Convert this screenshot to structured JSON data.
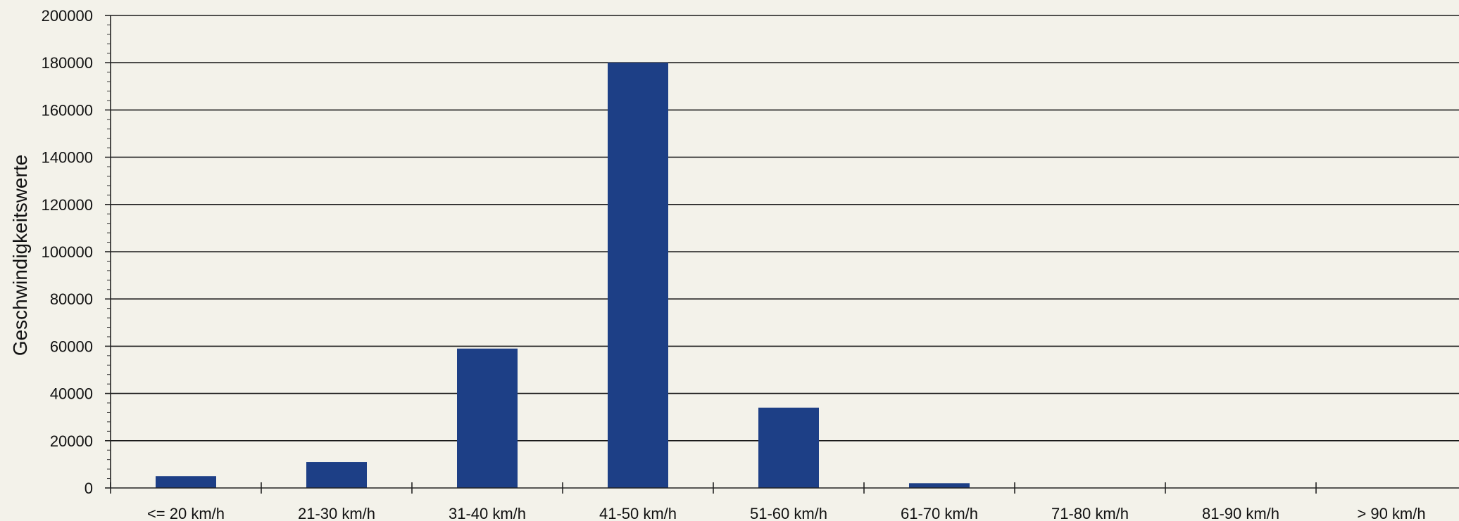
{
  "chart_data": {
    "type": "bar",
    "categories": [
      "<= 20 km/h",
      "21-30 km/h",
      "31-40 km/h",
      "41-50 km/h",
      "51-60 km/h",
      "61-70 km/h",
      "71-80 km/h",
      "81-90 km/h",
      "> 90 km/h"
    ],
    "values": [
      5000,
      11000,
      59000,
      180000,
      34000,
      2000,
      0,
      0,
      0
    ],
    "title": "",
    "xlabel": "",
    "ylabel": "Geschwindigkeitswerte",
    "ylim": [
      0,
      200000
    ],
    "yticks": [
      0,
      20000,
      40000,
      60000,
      80000,
      100000,
      120000,
      140000,
      160000,
      180000,
      200000
    ],
    "grid": true,
    "bar_color": "#1d3f86",
    "grid_color": "#1a1a1a",
    "background_color": "#f3f2ea"
  }
}
